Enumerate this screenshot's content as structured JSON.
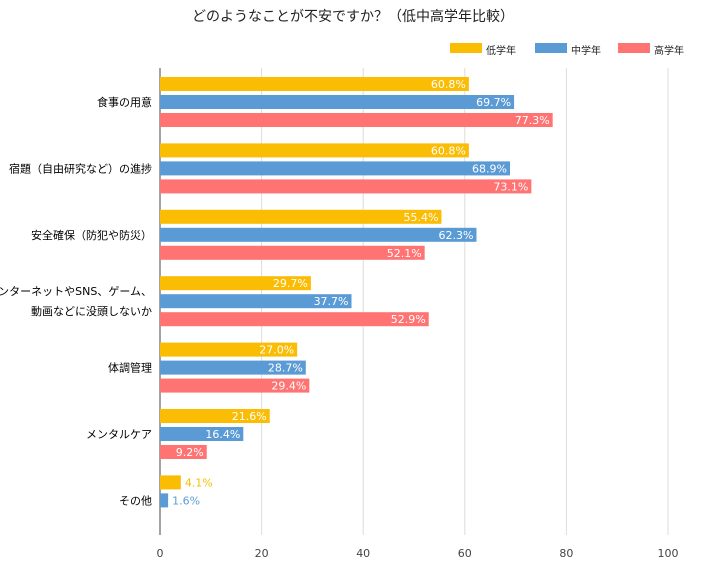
{
  "chart_data": {
    "type": "bar",
    "orientation": "horizontal",
    "title": "どのようなことが不安ですか？（低中高学年比較）",
    "categories": [
      [
        "食事の用意"
      ],
      [
        "宿題（自由研究など）の進捗"
      ],
      [
        "安全確保（防犯や防災）"
      ],
      [
        "インターネットやSNS、ゲーム、",
        "動画などに没頭しないか"
      ],
      [
        "体調管理"
      ],
      [
        "メンタルケア"
      ],
      [
        "その他"
      ]
    ],
    "series": [
      {
        "name": "低学年",
        "color": "#fbbc04",
        "values": [
          60.8,
          60.8,
          55.4,
          29.7,
          27.0,
          21.6,
          4.1
        ]
      },
      {
        "name": "中学年",
        "color": "#5b9bd5",
        "values": [
          69.7,
          68.9,
          62.3,
          37.7,
          28.7,
          16.4,
          1.6
        ]
      },
      {
        "name": "高学年",
        "color": "#ff7373",
        "values": [
          77.3,
          73.1,
          52.1,
          52.9,
          29.4,
          9.2,
          null
        ]
      }
    ],
    "value_labels": [
      [
        "60.8%",
        "69.7%",
        "77.3%"
      ],
      [
        "60.8%",
        "68.9%",
        "73.1%"
      ],
      [
        "55.4%",
        "62.3%",
        "52.1%"
      ],
      [
        "29.7%",
        "37.7%",
        "52.9%"
      ],
      [
        "27.0%",
        "28.7%",
        "29.4%"
      ],
      [
        "21.6%",
        "16.4%",
        "9.2%"
      ],
      [
        "4.1%",
        "1.6%",
        ""
      ]
    ],
    "xlim": [
      0,
      100
    ],
    "xticks": [
      "0",
      "20",
      "40",
      "60",
      "80",
      "100"
    ],
    "grid": true,
    "legend_position": "top-right"
  }
}
